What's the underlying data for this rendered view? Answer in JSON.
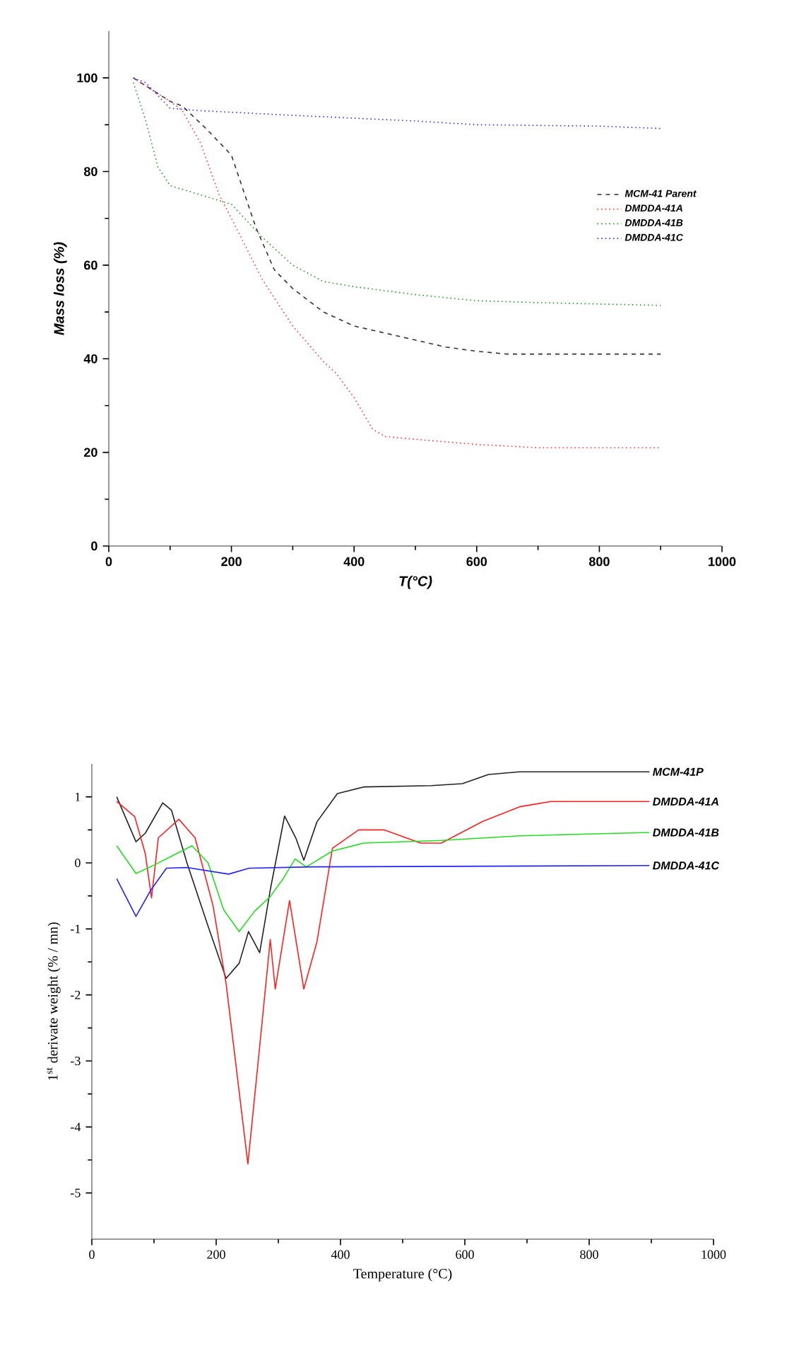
{
  "chart_data": [
    {
      "type": "line",
      "xlabel": "T(°C)",
      "ylabel": "Mass loss   (%)",
      "xlim": [
        0,
        1000
      ],
      "ylim": [
        0,
        110
      ],
      "xticks": [
        0,
        200,
        400,
        600,
        800,
        1000
      ],
      "yticks": [
        0,
        20,
        40,
        60,
        80,
        100
      ],
      "legend": "right",
      "grid": false,
      "series": [
        {
          "name": "MCM-41 Parent",
          "color": "#333333",
          "line_style": "dashed",
          "x": [
            40,
            100,
            120,
            160,
            200,
            240,
            270,
            300,
            350,
            400,
            450,
            500,
            550,
            600,
            650,
            900
          ],
          "values": [
            100,
            95,
            94,
            89,
            83.5,
            68,
            59,
            55,
            50,
            47,
            45.5,
            44,
            42.5,
            41.6,
            41,
            41
          ]
        },
        {
          "name": "DMDDA-41A",
          "color": "#ff3333",
          "line_style": "dotted",
          "x": [
            40,
            100,
            120,
            150,
            180,
            200,
            250,
            300,
            350,
            370,
            400,
            430,
            450,
            500,
            600,
            700,
            900
          ],
          "values": [
            100,
            95,
            93,
            86,
            75,
            70,
            57,
            47,
            39.4,
            37,
            31.7,
            25,
            23.4,
            22.8,
            21.7,
            21,
            21
          ]
        },
        {
          "name": "DMDDA-41B",
          "color": "#229922",
          "line_style": "dotted",
          "x": [
            40,
            60,
            80,
            100,
            150,
            200,
            250,
            300,
            350,
            400,
            500,
            600,
            700,
            900
          ],
          "values": [
            99,
            91,
            81,
            77,
            75,
            73,
            66,
            60,
            56.5,
            55.4,
            53.7,
            52.4,
            52,
            51.4
          ]
        },
        {
          "name": "DMDDA-41C",
          "color": "#3333ff",
          "line_style": "dotted",
          "x": [
            40,
            60,
            100,
            150,
            300,
            500,
            600,
            800,
            900
          ],
          "values": [
            100,
            99,
            93.5,
            93,
            92,
            90.8,
            90,
            89.7,
            89.2
          ]
        }
      ]
    },
    {
      "type": "line",
      "xlabel": "Temperature (°C)",
      "ylabel": "1$^{st}$ derivate weight (% / mn)",
      "xlim": [
        0,
        1000
      ],
      "ylim": [
        -5.7,
        1.5
      ],
      "xticks": [
        0,
        200,
        400,
        600,
        800,
        1000
      ],
      "yticks": [
        -5,
        -4,
        -3,
        -2,
        -1,
        0,
        1
      ],
      "legend": false,
      "grid": false,
      "series": [
        {
          "name": "MCM-41P",
          "color": "#222222",
          "line_style": "solid",
          "x": [
            40,
            71,
            86,
            114,
            128,
            153,
            187,
            216,
            237,
            252,
            270,
            287,
            310,
            328,
            341,
            362,
            395,
            437,
            546,
            596,
            638,
            688,
            897
          ],
          "values": [
            1.0,
            0.32,
            0.45,
            0.91,
            0.8,
            0,
            -0.96,
            -1.75,
            -1.52,
            -1.04,
            -1.36,
            -0.41,
            0.71,
            0.38,
            0.04,
            0.62,
            1.05,
            1.15,
            1.17,
            1.2,
            1.34,
            1.38,
            1.38
          ]
        },
        {
          "name": "DMDDA-41A",
          "color": "#ff2020",
          "line_style": "solid",
          "x": [
            40,
            69,
            86,
            96,
            107,
            140,
            166,
            195,
            216,
            251,
            270,
            287,
            295,
            318,
            341,
            362,
            387,
            429,
            470,
            529,
            562,
            629,
            688,
            738,
            897
          ],
          "values": [
            0.93,
            0.7,
            0.14,
            -0.53,
            0.38,
            0.66,
            0.38,
            -0.65,
            -1.83,
            -4.56,
            -2.78,
            -1.16,
            -1.91,
            -0.57,
            -1.91,
            -1.2,
            0.22,
            0.5,
            0.5,
            0.3,
            0.3,
            0.63,
            0.85,
            0.93,
            0.93
          ]
        },
        {
          "name": "DMDDA-41B",
          "color": "#22dd22",
          "line_style": "solid",
          "x": [
            40,
            71,
            103,
            161,
            187,
            212,
            237,
            262,
            287,
            307,
            327,
            345,
            387,
            437,
            562,
            688,
            897
          ],
          "values": [
            0.26,
            -0.16,
            -0.02,
            0.26,
            0.0,
            -0.71,
            -1.04,
            -0.73,
            -0.51,
            -0.25,
            0.06,
            -0.06,
            0.18,
            0.3,
            0.34,
            0.41,
            0.46
          ]
        },
        {
          "name": "DMDDA-41C",
          "color": "#2222ff",
          "line_style": "solid",
          "x": [
            40,
            71,
            95,
            120,
            153,
            220,
            253,
            353,
            897
          ],
          "values": [
            -0.24,
            -0.81,
            -0.41,
            -0.08,
            -0.07,
            -0.17,
            -0.08,
            -0.06,
            -0.04
          ]
        }
      ]
    }
  ]
}
